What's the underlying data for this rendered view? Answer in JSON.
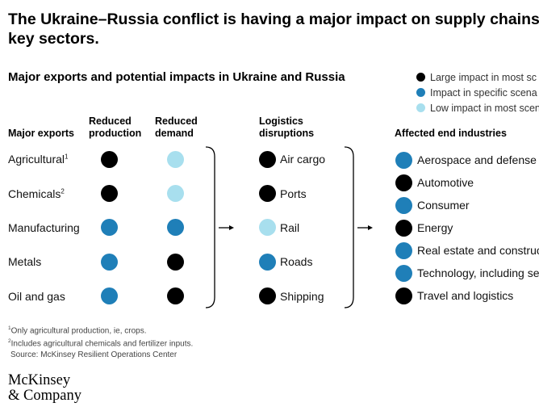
{
  "title_line1": "The Ukraine–Russia conflict is having a major impact on supply chains",
  "title_line2": "key sectors.",
  "subtitle": "Major exports and potential impacts in Ukraine and Russia",
  "colors": {
    "large": "#000000",
    "specific": "#1f7fb8",
    "low": "#a8dfee"
  },
  "legend": [
    {
      "level": "large",
      "label": "Large impact in most sc"
    },
    {
      "level": "specific",
      "label": "Impact in specific scena"
    },
    {
      "level": "low",
      "label": "Low impact in most scen"
    }
  ],
  "headers": {
    "exports": "Major exports",
    "reduced_production": [
      "Reduced",
      "production"
    ],
    "reduced_demand": [
      "Reduced",
      "demand"
    ],
    "logistics": [
      "Logistics",
      "disruptions"
    ],
    "industries": "Affected end industries"
  },
  "exports": [
    {
      "label": "Agricultural",
      "sup": "1",
      "production": "large",
      "demand": "low"
    },
    {
      "label": "Chemicals",
      "sup": "2",
      "production": "large",
      "demand": "low"
    },
    {
      "label": "Manufacturing",
      "sup": "",
      "production": "specific",
      "demand": "specific"
    },
    {
      "label": "Metals",
      "sup": "",
      "production": "specific",
      "demand": "large"
    },
    {
      "label": "Oil and gas",
      "sup": "",
      "production": "specific",
      "demand": "large"
    }
  ],
  "logistics": [
    {
      "label": "Air cargo",
      "level": "large"
    },
    {
      "label": "Ports",
      "level": "large"
    },
    {
      "label": "Rail",
      "level": "low"
    },
    {
      "label": "Roads",
      "level": "specific"
    },
    {
      "label": "Shipping",
      "level": "large"
    }
  ],
  "industries": [
    {
      "label": "Aerospace and defense",
      "level": "specific"
    },
    {
      "label": "Automotive",
      "level": "large"
    },
    {
      "label": "Consumer",
      "level": "specific"
    },
    {
      "label": "Energy",
      "level": "large"
    },
    {
      "label": "Real estate and construc",
      "level": "specific"
    },
    {
      "label": "Technology, including se",
      "level": "specific"
    },
    {
      "label": "Travel and logistics",
      "level": "large"
    }
  ],
  "footnotes": [
    {
      "sup": "1",
      "text": "Only agricultural production, ie, crops."
    },
    {
      "sup": "2",
      "text": "Includes agricultural chemicals and fertilizer inputs."
    }
  ],
  "source": "Source: McKinsey Resilient Operations Center",
  "logo": [
    "McKinsey",
    "& Company"
  ]
}
